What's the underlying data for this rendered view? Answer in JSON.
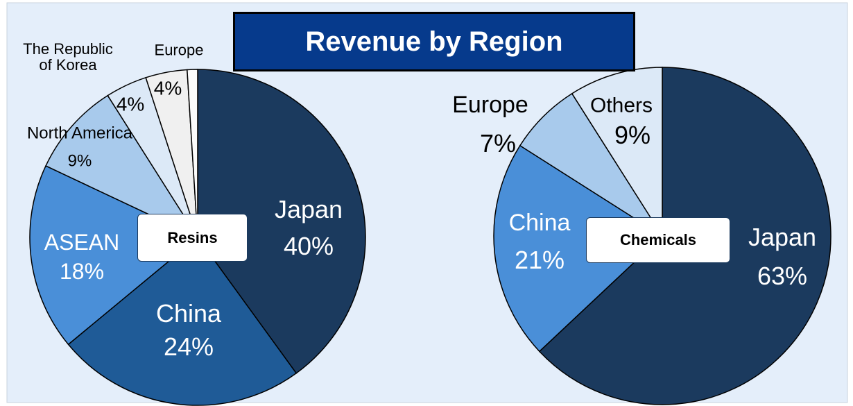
{
  "title": "Revenue by Region",
  "chart_data": [
    {
      "type": "pie",
      "label": "Resins",
      "categories": [
        "Japan",
        "China",
        "ASEAN",
        "North America",
        "The Republic of Korea",
        "Europe",
        null
      ],
      "values": [
        40,
        24,
        18,
        9,
        4,
        4,
        1
      ],
      "value_labels": [
        "40%",
        "24%",
        "18%",
        "9%",
        "4%",
        "4%",
        null
      ],
      "colors": [
        "#1b3a5e",
        "#1f5b97",
        "#4a8fd8",
        "#a8caec",
        "#dce9f7",
        "#f0f0f0",
        "#fbfbfb"
      ]
    },
    {
      "type": "pie",
      "label": "Chemicals",
      "categories": [
        "Japan",
        "China",
        "Europe",
        "Others"
      ],
      "values": [
        63,
        21,
        7,
        9
      ],
      "value_labels": [
        "63%",
        "21%",
        "7%",
        "9%"
      ],
      "colors": [
        "#1b3a5e",
        "#4a8fd8",
        "#a8caec",
        "#dce9f7"
      ]
    }
  ]
}
